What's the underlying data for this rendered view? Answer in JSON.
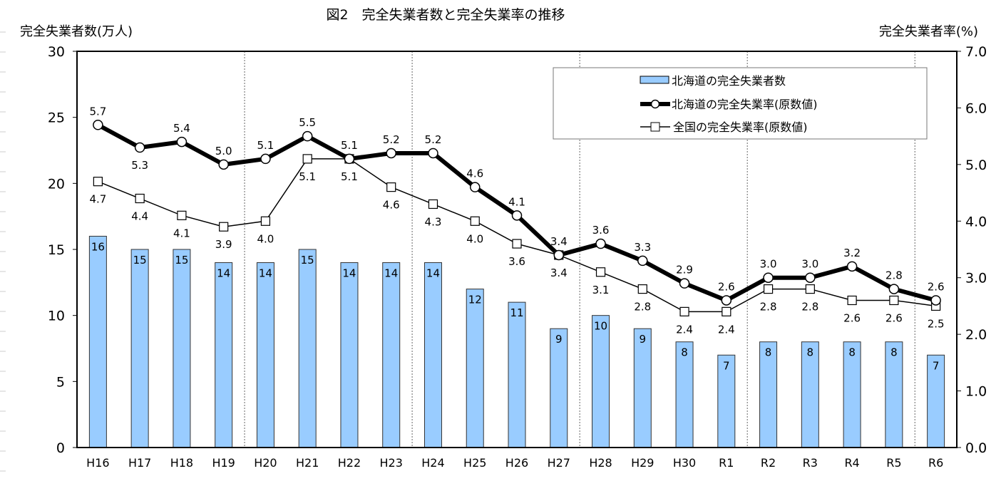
{
  "chart_data": {
    "type": "bar+line",
    "title": "図2　完全失業者数と完全失業率の推移",
    "ylabel_left": "完全失業者数(万人)",
    "ylabel_right": "完全失業者率(%)",
    "ylim_left": [
      0,
      30
    ],
    "ylim_right": [
      0,
      7
    ],
    "yticks_left": [
      "0",
      "5",
      "10",
      "15",
      "20",
      "25",
      "30"
    ],
    "yticks_right": [
      "0.0",
      "1.0",
      "2.0",
      "3.0",
      "4.0",
      "5.0",
      "6.0",
      "7.0"
    ],
    "categories": [
      "H16",
      "H17",
      "H18",
      "H19",
      "H20",
      "H21",
      "H22",
      "H23",
      "H24",
      "H25",
      "H26",
      "H27",
      "H28",
      "H29",
      "H30",
      "R1",
      "R2",
      "R3",
      "R4",
      "R5",
      "R6"
    ],
    "legend_position": "top-right",
    "series": [
      {
        "name": "北海道の完全失業者数",
        "type": "bar",
        "axis": "left",
        "color": "#99ccff",
        "values": [
          16,
          15,
          15,
          14,
          14,
          15,
          14,
          14,
          14,
          12,
          11,
          9,
          10,
          9,
          8,
          7,
          8,
          8,
          8,
          8,
          7
        ]
      },
      {
        "name": "北海道の完全失業率(原数値)",
        "type": "line",
        "axis": "right",
        "marker": "circle",
        "color": "#000000",
        "values": [
          5.7,
          5.3,
          5.4,
          5.0,
          5.1,
          5.5,
          5.1,
          5.2,
          5.2,
          4.6,
          4.1,
          3.4,
          3.6,
          3.3,
          2.9,
          2.6,
          3.0,
          3.0,
          3.2,
          2.8,
          2.6
        ]
      },
      {
        "name": "全国の完全失業率(原数値)",
        "type": "line",
        "axis": "right",
        "marker": "square",
        "color": "#000000",
        "values": [
          4.7,
          4.4,
          4.1,
          3.9,
          4.0,
          5.1,
          5.1,
          4.6,
          4.3,
          4.0,
          3.6,
          3.4,
          3.1,
          2.8,
          2.4,
          2.4,
          2.8,
          2.8,
          2.6,
          2.6,
          2.5
        ]
      }
    ]
  }
}
